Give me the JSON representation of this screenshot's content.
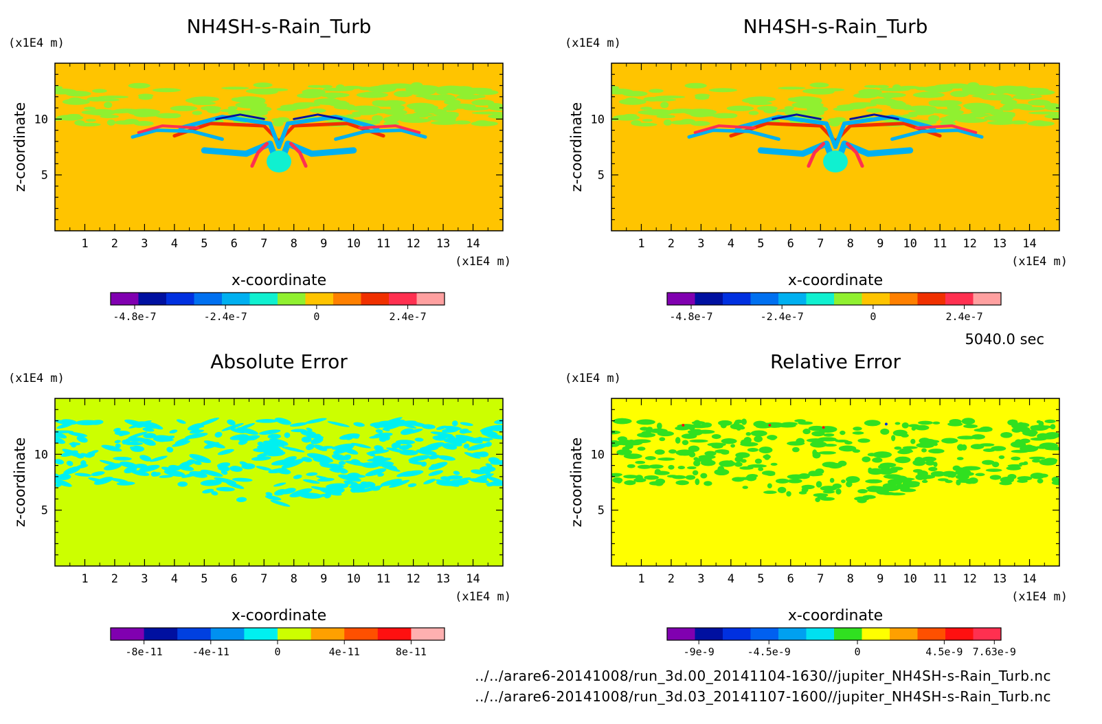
{
  "time_label": "5040.0 sec",
  "footer": {
    "file_a": "../../arare6-20141008/run_3d.00_20141104-1630//jupiter_NH4SH-s-Rain_Turb.nc",
    "file_b": "../../arare6-20141008/run_3d.03_20141107-1600//jupiter_NH4SH-s-Rain_Turb.nc"
  },
  "chart_data": [
    {
      "type": "heatmap",
      "title": "NH4SH-s-Rain_Turb",
      "xlabel": "x-coordinate",
      "ylabel": "z-coordinate",
      "x_unit": "(x1E4 m)",
      "y_unit": "(x1E4 m)",
      "xlim": [
        0,
        15
      ],
      "ylim": [
        0,
        15
      ],
      "xticks": [
        "1",
        "2",
        "3",
        "4",
        "5",
        "6",
        "7",
        "8",
        "9",
        "10",
        "11",
        "12",
        "13",
        "14"
      ],
      "yticks": [
        "5",
        "10"
      ],
      "field": "plume",
      "background": "#ffc400",
      "colorbar": {
        "colors": [
          "#8000b0",
          "#0010a0",
          "#0030e0",
          "#0070f0",
          "#00b0f0",
          "#10f0d0",
          "#90f030",
          "#ffc400",
          "#ff8000",
          "#f03000",
          "#ff3050",
          "#ffa0a0"
        ],
        "tick_labels": [
          "-4.8e-7",
          "-2.4e-7",
          "0",
          "2.4e-7"
        ]
      }
    },
    {
      "type": "heatmap",
      "title": "NH4SH-s-Rain_Turb",
      "xlabel": "x-coordinate",
      "ylabel": "z-coordinate",
      "x_unit": "(x1E4 m)",
      "y_unit": "(x1E4 m)",
      "xlim": [
        0,
        15
      ],
      "ylim": [
        0,
        15
      ],
      "xticks": [
        "1",
        "2",
        "3",
        "4",
        "5",
        "6",
        "7",
        "8",
        "9",
        "10",
        "11",
        "12",
        "13",
        "14"
      ],
      "yticks": [
        "5",
        "10"
      ],
      "field": "plume",
      "background": "#ffc400",
      "colorbar": {
        "colors": [
          "#8000b0",
          "#0010a0",
          "#0030e0",
          "#0070f0",
          "#00b0f0",
          "#10f0d0",
          "#90f030",
          "#ffc400",
          "#ff8000",
          "#f03000",
          "#ff3050",
          "#ffa0a0"
        ],
        "tick_labels": [
          "-4.8e-7",
          "-2.4e-7",
          "0",
          "2.4e-7"
        ]
      }
    },
    {
      "type": "heatmap",
      "title": "Absolute Error",
      "xlabel": "x-coordinate",
      "ylabel": "z-coordinate",
      "x_unit": "(x1E4 m)",
      "y_unit": "(x1E4 m)",
      "xlim": [
        0,
        15
      ],
      "ylim": [
        0,
        15
      ],
      "xticks": [
        "1",
        "2",
        "3",
        "4",
        "5",
        "6",
        "7",
        "8",
        "9",
        "10",
        "11",
        "12",
        "13",
        "14"
      ],
      "yticks": [
        "5",
        "10"
      ],
      "field": "abs_error",
      "background": "#ccff00",
      "colorbar": {
        "colors": [
          "#8000b0",
          "#0010a0",
          "#0040e0",
          "#0090f0",
          "#00f0f0",
          "#ccff00",
          "#ffa000",
          "#ff5000",
          "#ff1010",
          "#ffb0b0"
        ],
        "tick_labels": [
          "-8e-11",
          "-4e-11",
          "0",
          "4e-11",
          "8e-11"
        ]
      }
    },
    {
      "type": "heatmap",
      "title": "Relative Error",
      "xlabel": "x-coordinate",
      "ylabel": "z-coordinate",
      "x_unit": "(x1E4 m)",
      "y_unit": "(x1E4 m)",
      "xlim": [
        0,
        15
      ],
      "ylim": [
        0,
        15
      ],
      "xticks": [
        "1",
        "2",
        "3",
        "4",
        "5",
        "6",
        "7",
        "8",
        "9",
        "10",
        "11",
        "12",
        "13",
        "14"
      ],
      "yticks": [
        "5",
        "10"
      ],
      "field": "rel_error",
      "background": "#ffff00",
      "colorbar": {
        "colors": [
          "#8000b0",
          "#0010a0",
          "#0030e0",
          "#0060f0",
          "#00a0f0",
          "#00e0f0",
          "#30e020",
          "#ffff00",
          "#ffa000",
          "#ff5000",
          "#ff1010",
          "#ff3050"
        ],
        "tick_labels": [
          "-9e-9",
          "-4.5e-9",
          "0",
          "4.5e-9",
          "7.63e-9"
        ]
      }
    }
  ]
}
